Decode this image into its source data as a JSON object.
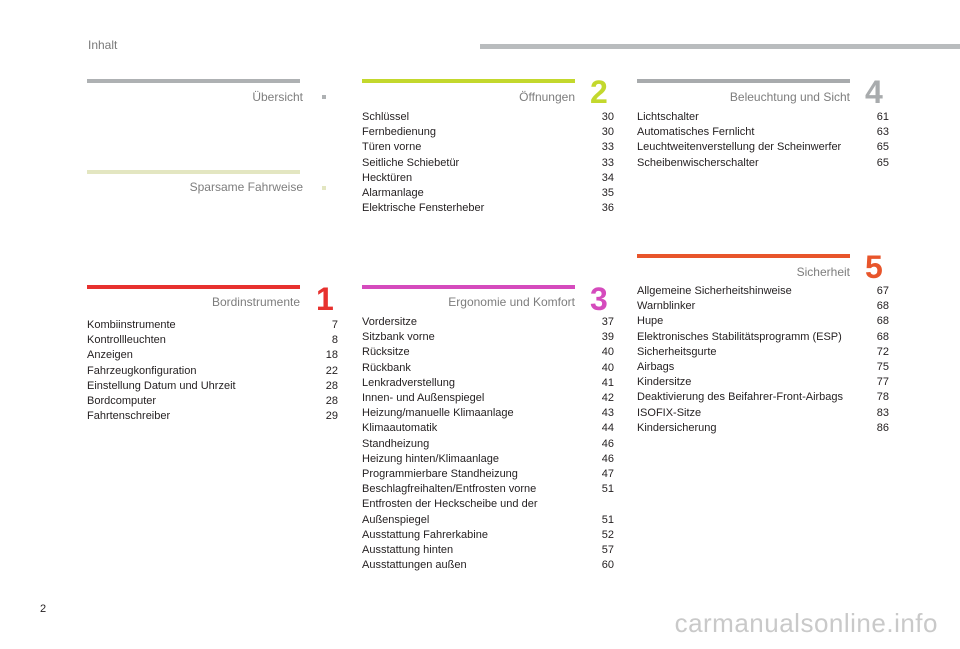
{
  "header": {
    "title": "Inhalt"
  },
  "page_number": "2",
  "watermark": "carmanualsonline.info",
  "colors": {
    "gray": "#aeb1b3",
    "sparsam": "#e3e6c1",
    "oeffnungen": "#c3d82d",
    "bordinstrumente": "#e7312e",
    "ergonomie": "#d54bbd",
    "sicherheit": "#e8552b",
    "beleuchtung": "#a8abad"
  },
  "sections": {
    "uebersicht": {
      "title": "Übersicht",
      "number": "",
      "entries": []
    },
    "sparsam": {
      "title": "Sparsame Fahrweise",
      "number": "",
      "entries": []
    },
    "oeffnungen": {
      "title": "Öffnungen",
      "number": "2",
      "entries": [
        {
          "label": "Schlüssel",
          "page": "30"
        },
        {
          "label": "Fernbedienung",
          "page": "30"
        },
        {
          "label": "Türen vorne",
          "page": "33"
        },
        {
          "label": "Seitliche Schiebetür",
          "page": "33"
        },
        {
          "label": "Hecktüren",
          "page": "34"
        },
        {
          "label": "Alarmanlage",
          "page": "35"
        },
        {
          "label": "Elektrische Fensterheber",
          "page": "36"
        }
      ]
    },
    "beleuchtung": {
      "title": "Beleuchtung und Sicht",
      "number": "4",
      "entries": [
        {
          "label": "Lichtschalter",
          "page": "61"
        },
        {
          "label": "Automatisches Fernlicht",
          "page": "63"
        },
        {
          "label": "Leuchtweitenverstellung der Scheinwerfer",
          "page": "65"
        },
        {
          "label": "Scheibenwischerschalter",
          "page": "65"
        }
      ]
    },
    "bordinstrumente": {
      "title": "Bordinstrumente",
      "number": "1",
      "entries": [
        {
          "label": "Kombiinstrumente",
          "page": "7"
        },
        {
          "label": "Kontrollleuchten",
          "page": "8"
        },
        {
          "label": "Anzeigen",
          "page": "18"
        },
        {
          "label": "Fahrzeugkonfiguration",
          "page": "22"
        },
        {
          "label": "Einstellung Datum und Uhrzeit",
          "page": "28"
        },
        {
          "label": "Bordcomputer",
          "page": "28"
        },
        {
          "label": "Fahrtenschreiber",
          "page": "29"
        }
      ]
    },
    "ergonomie": {
      "title": "Ergonomie und Komfort",
      "number": "3",
      "entries": [
        {
          "label": "Vordersitze",
          "page": "37"
        },
        {
          "label": "Sitzbank vorne",
          "page": "39"
        },
        {
          "label": "Rücksitze",
          "page": "40"
        },
        {
          "label": "Rückbank",
          "page": "40"
        },
        {
          "label": "Lenkradverstellung",
          "page": "41"
        },
        {
          "label": "Innen- und Außenspiegel",
          "page": "42"
        },
        {
          "label": "Heizung/manuelle Klimaanlage",
          "page": "43"
        },
        {
          "label": "Klimaautomatik",
          "page": "44"
        },
        {
          "label": "Standheizung",
          "page": "46"
        },
        {
          "label": "Heizung hinten/Klimaanlage",
          "page": "46"
        },
        {
          "label": "Programmierbare Standheizung",
          "page": "47"
        },
        {
          "label": "Beschlagfreihalten/Entfrosten vorne",
          "page": "51"
        },
        {
          "label": "Entfrosten der Heckscheibe und der Außenspiegel",
          "page": "51"
        },
        {
          "label": "Ausstattung Fahrerkabine",
          "page": "52"
        },
        {
          "label": "Ausstattung hinten",
          "page": "57"
        },
        {
          "label": "Ausstattungen außen",
          "page": "60"
        }
      ]
    },
    "sicherheit": {
      "title": "Sicherheit",
      "number": "5",
      "entries": [
        {
          "label": "Allgemeine Sicherheitshinweise",
          "page": "67"
        },
        {
          "label": "Warnblinker",
          "page": "68"
        },
        {
          "label": "Hupe",
          "page": "68"
        },
        {
          "label": "Elektronisches Stabilitätsprogramm (ESP)",
          "page": "68"
        },
        {
          "label": "Sicherheitsgurte",
          "page": "72"
        },
        {
          "label": "Airbags",
          "page": "75"
        },
        {
          "label": "Kindersitze",
          "page": "77"
        },
        {
          "label": "Deaktivierung des Beifahrer-Front-Airbags",
          "page": "78"
        },
        {
          "label": "ISOFIX-Sitze",
          "page": "83"
        },
        {
          "label": "Kindersicherung",
          "page": "86"
        }
      ]
    }
  }
}
